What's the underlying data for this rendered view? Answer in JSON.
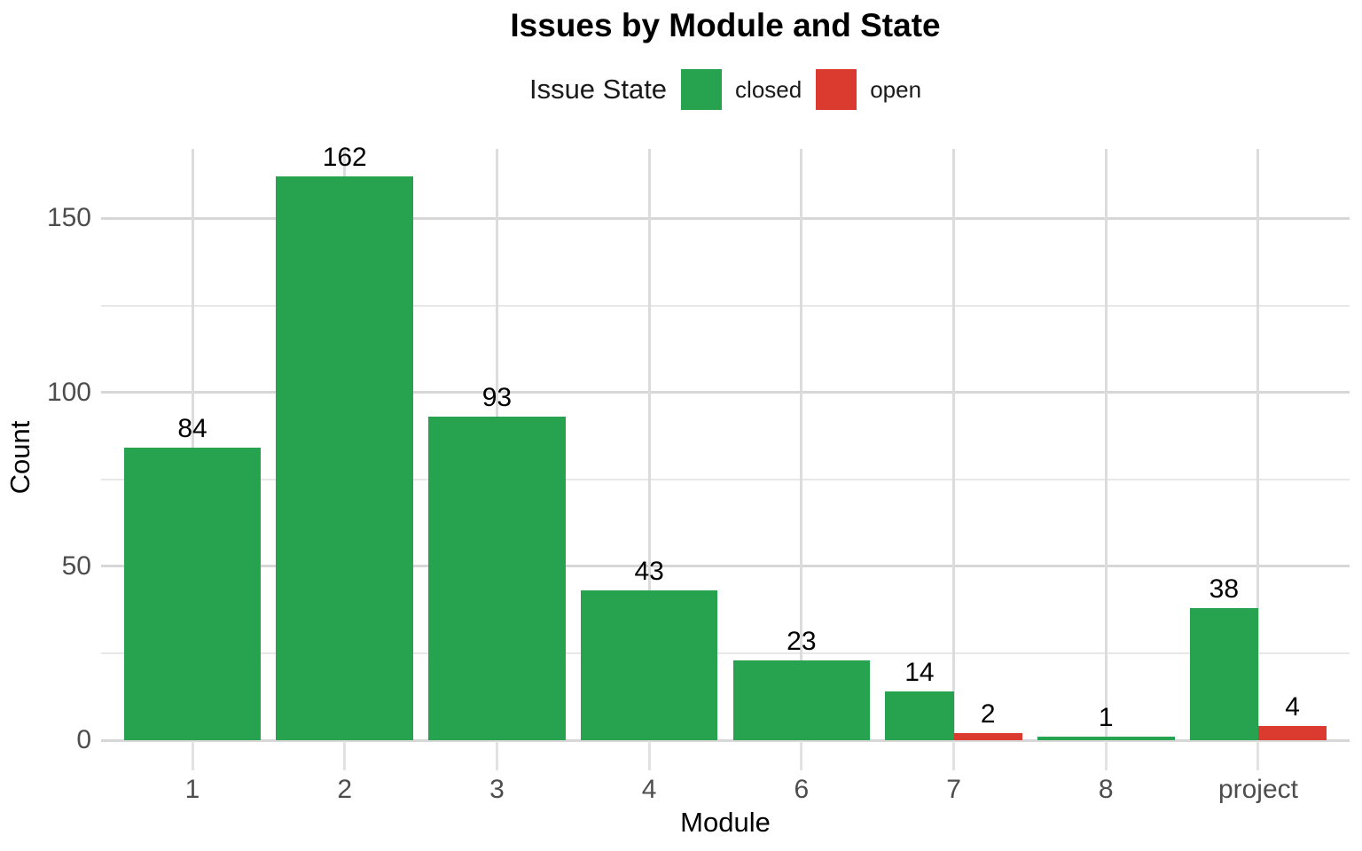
{
  "title": "Issues by Module and State",
  "legend": {
    "title": "Issue State",
    "entries": [
      {
        "label": "closed",
        "color": "#27a350"
      },
      {
        "label": "open",
        "color": "#db3b2f"
      }
    ]
  },
  "chart_data": {
    "type": "bar",
    "title": "Issues by Module and State",
    "xlabel": "Module",
    "ylabel": "Count",
    "categories": [
      "1",
      "2",
      "3",
      "4",
      "6",
      "7",
      "8",
      "project"
    ],
    "series": [
      {
        "name": "closed",
        "color": "#27a350",
        "values": [
          84,
          162,
          93,
          43,
          23,
          14,
          1,
          38
        ]
      },
      {
        "name": "open",
        "color": "#db3b2f",
        "values": [
          null,
          null,
          null,
          null,
          null,
          2,
          null,
          4
        ]
      }
    ],
    "bar_labels": [
      {
        "category": "1",
        "closed": 84
      },
      {
        "category": "2",
        "closed": 162
      },
      {
        "category": "3",
        "closed": 93
      },
      {
        "category": "4",
        "closed": 43
      },
      {
        "category": "6",
        "closed": 23
      },
      {
        "category": "7",
        "closed": 14,
        "open": 2
      },
      {
        "category": "8",
        "closed": 1
      },
      {
        "category": "project",
        "closed": 38,
        "open": 4
      }
    ],
    "ylim": [
      0,
      170
    ],
    "yticks_major": [
      0,
      50,
      100,
      150
    ],
    "yticks_minor": [
      25,
      75,
      125
    ],
    "grid": true,
    "legend_position": "top",
    "colors": {
      "grid_major": "#d7d7d7",
      "grid_minor": "#e7e7e7",
      "axis_tick": "#e2e2e2",
      "axis_text": "#4d4d4d",
      "text": "#000000",
      "background": "#ffffff"
    }
  }
}
